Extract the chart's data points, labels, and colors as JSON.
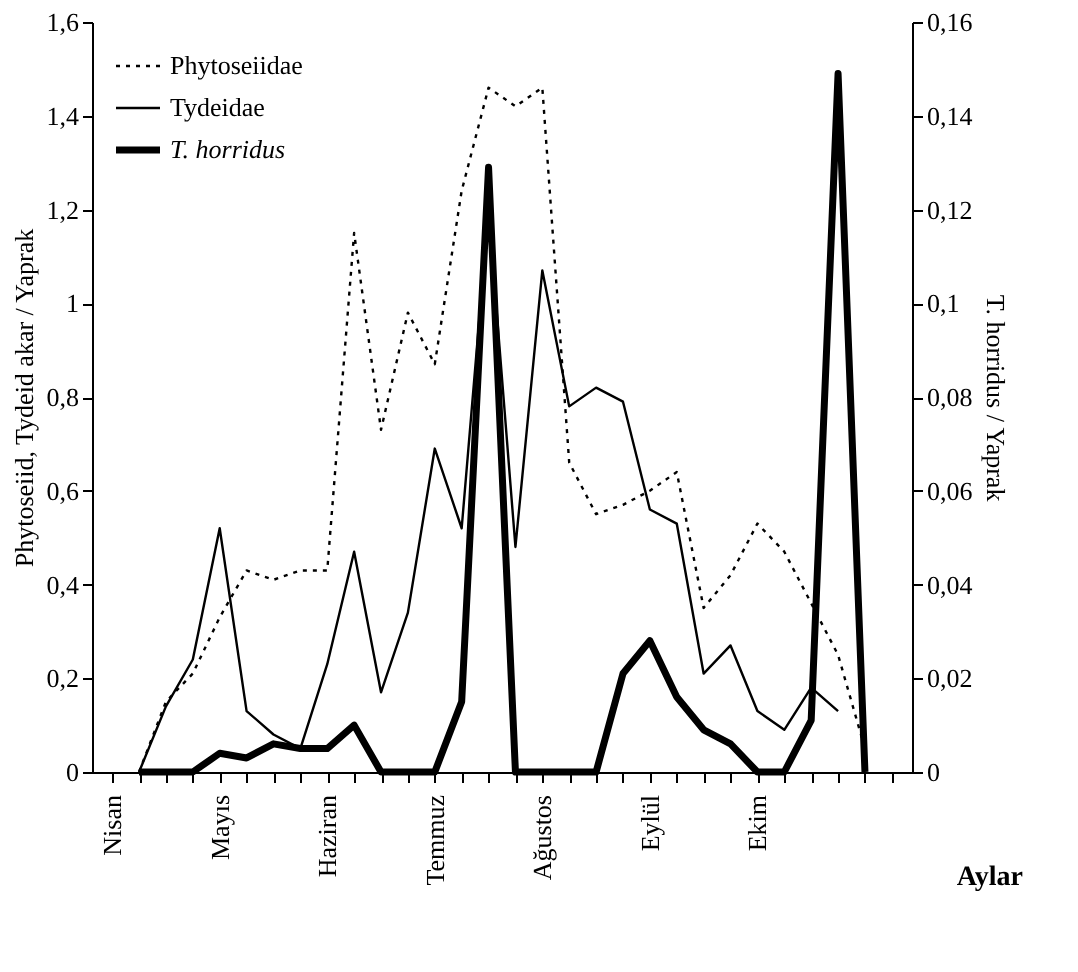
{
  "chart_data": {
    "type": "line",
    "xlabel": "Aylar",
    "ylabel": "Phytoseiid, Tydeid akar / Yaprak",
    "y2label": "T. horridus / Yaprak",
    "categories": [
      "Nisan",
      null,
      null,
      null,
      "Mayıs",
      null,
      null,
      null,
      "Haziran",
      null,
      null,
      null,
      "Temmuz",
      null,
      null,
      null,
      "Ağustos",
      null,
      null,
      null,
      "Eylül",
      null,
      null,
      null,
      "Ekim",
      null,
      null,
      null,
      null,
      null
    ],
    "ylim": [
      0,
      1.6
    ],
    "yticks": [
      0,
      {
        "value": 0.2,
        "label": "0,2"
      },
      {
        "value": 0.4,
        "label": "0,4"
      },
      {
        "value": 0.6,
        "label": "0,6"
      },
      {
        "value": 0.8,
        "label": "0,8"
      },
      1,
      {
        "value": 1.2,
        "label": "1,2"
      },
      {
        "value": 1.4,
        "label": "1,4"
      },
      {
        "value": 1.6,
        "label": "1,6"
      }
    ],
    "y2lim": [
      0,
      0.16
    ],
    "y2ticks": [
      0,
      {
        "value": 0.02,
        "label": "0,02"
      },
      {
        "value": 0.04,
        "label": "0,04"
      },
      {
        "value": 0.06,
        "label": "0,06"
      },
      {
        "value": 0.08,
        "label": "0,08"
      },
      {
        "value": 0.1,
        "label": "0,1"
      },
      {
        "value": 0.12,
        "label": "0,12"
      },
      {
        "value": 0.14,
        "label": "0,14"
      },
      {
        "value": 0.16,
        "label": "0,16"
      }
    ],
    "series": [
      {
        "name": "Phytoseiidae",
        "color": "#000000",
        "line_style": "dotted",
        "values": [
          null,
          0,
          0.15,
          0.21,
          0.33,
          0.43,
          0.41,
          0.43,
          0.43,
          1.15,
          0.73,
          0.98,
          0.87,
          1.24,
          1.46,
          1.42,
          1.46,
          0.66,
          0.55,
          0.57,
          0.6,
          0.64,
          0.35,
          0.42,
          0.53,
          0.47,
          0.36,
          0.25,
          0.05,
          null
        ]
      },
      {
        "name": "Tydeidae",
        "color": "#000000",
        "line_style": "solid",
        "values": [
          null,
          0,
          0.14,
          0.24,
          0.52,
          0.13,
          0.08,
          0.05,
          0.23,
          0.47,
          0.17,
          0.34,
          0.69,
          0.52,
          1.2,
          0.48,
          1.07,
          0.78,
          0.82,
          0.79,
          0.56,
          0.53,
          0.21,
          0.27,
          0.13,
          0.09,
          0.18,
          0.13,
          null,
          null
        ]
      },
      {
        "name": "T. horridus",
        "color": "#000000",
        "line_style": "solid",
        "axis": "y2",
        "values": [
          null,
          0,
          0,
          0,
          0.004,
          0.003,
          0.006,
          0.005,
          0.005,
          0.01,
          0,
          0,
          0,
          0.015,
          0.129,
          0,
          0,
          0,
          0,
          0.021,
          0.028,
          0.016,
          0.009,
          0.006,
          0,
          0,
          0.011,
          0.149,
          0,
          null
        ]
      }
    ],
    "grid": false,
    "legend": "top left",
    "marker": "none"
  }
}
